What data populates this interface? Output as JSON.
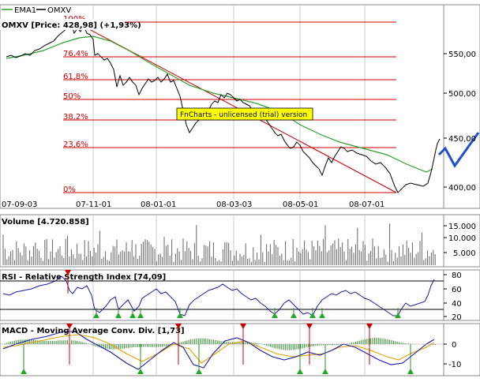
{
  "legend": {
    "ema_label": "EMA1",
    "omxv_label": "OMXV"
  },
  "main_panel": {
    "title": "OMXV [Price: 428,98] (+1,93%)",
    "fib_labels": [
      "100%",
      "76,4%",
      "61,8%",
      "50%",
      "38,2%",
      "23,6%",
      "0%"
    ],
    "price_ticks": [
      "550,00",
      "500,00",
      "450,00",
      "400,00"
    ],
    "date_ticks": [
      "07-09-03",
      "07-11-01",
      "08-01-01",
      "08-03-03",
      "08-05-01",
      "08-07-01"
    ],
    "watermark": "FnCharts - unlicensed (trial) version",
    "colors": {
      "price": "#000000",
      "ema": "#2ca02c",
      "fib": "#cc0000",
      "trend": "#cc0000",
      "forecast": "#1f4fd6",
      "watermark_bg": "#ffff00"
    }
  },
  "volume_panel": {
    "title": "Volume [4.720.858]",
    "ticks": [
      "15.000",
      "10.000",
      "5.000"
    ]
  },
  "rsi_panel": {
    "title": "RSI - Relative Strength Index [74,09]",
    "ticks": [
      "80",
      "60",
      "40",
      "20"
    ]
  },
  "macd_panel": {
    "title": "MACD - Moving Average Conv. Div. [1,73]",
    "ticks": [
      "0",
      "-10"
    ]
  },
  "chart_data": {
    "type": "line",
    "price_range": [
      385,
      590
    ],
    "price_series_approx": [
      542,
      543,
      545,
      548,
      555,
      563,
      570,
      578,
      583,
      580,
      575,
      560,
      540,
      535,
      525,
      515,
      508,
      502,
      510,
      505,
      512,
      500,
      470,
      460,
      462,
      478,
      485,
      490,
      500,
      492,
      475,
      462,
      450,
      440,
      432,
      420,
      412,
      420,
      432,
      430,
      425,
      428,
      420,
      405,
      392,
      395,
      400,
      403,
      428,
      432
    ],
    "ema_series_approx": [
      540,
      541,
      542,
      544,
      548,
      553,
      558,
      563,
      567,
      568,
      567,
      563,
      557,
      551,
      545,
      540,
      535,
      531,
      528,
      525,
      522,
      518,
      512,
      506,
      500,
      496,
      493,
      491,
      490,
      488,
      484,
      478,
      471,
      464,
      458,
      452,
      446,
      441,
      437,
      434,
      432,
      430,
      428,
      425,
      420,
      416,
      413,
      412,
      416,
      420
    ],
    "forecast_approx": [
      430,
      448,
      420,
      455
    ]
  }
}
